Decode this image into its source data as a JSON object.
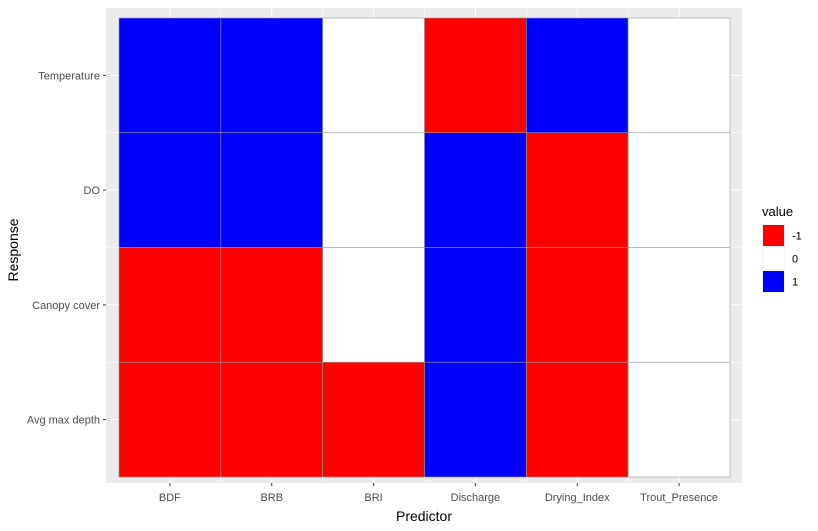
{
  "chart_data": {
    "type": "heatmap",
    "xlabel": "Predictor",
    "ylabel": "Response",
    "x_categories": [
      "BDF",
      "BRB",
      "BRI",
      "Discharge",
      "Drying_Index",
      "Trout_Presence"
    ],
    "y_categories": [
      "Temperature",
      "DO",
      "Canopy cover",
      "Avg max depth"
    ],
    "values": [
      [
        1,
        1,
        0,
        -1,
        1,
        0
      ],
      [
        1,
        1,
        0,
        1,
        -1,
        0
      ],
      [
        -1,
        -1,
        0,
        1,
        -1,
        0
      ],
      [
        -1,
        -1,
        -1,
        1,
        -1,
        0
      ]
    ],
    "legend": {
      "title": "value",
      "placement": "right",
      "entries": [
        {
          "label": "-1",
          "value": -1,
          "color": "#ff0000"
        },
        {
          "label": "0",
          "value": 0,
          "color": "#ffffff"
        },
        {
          "label": "1",
          "value": 1,
          "color": "#0000ff"
        }
      ]
    },
    "panel_background": "#ebebeb",
    "grid": true
  }
}
